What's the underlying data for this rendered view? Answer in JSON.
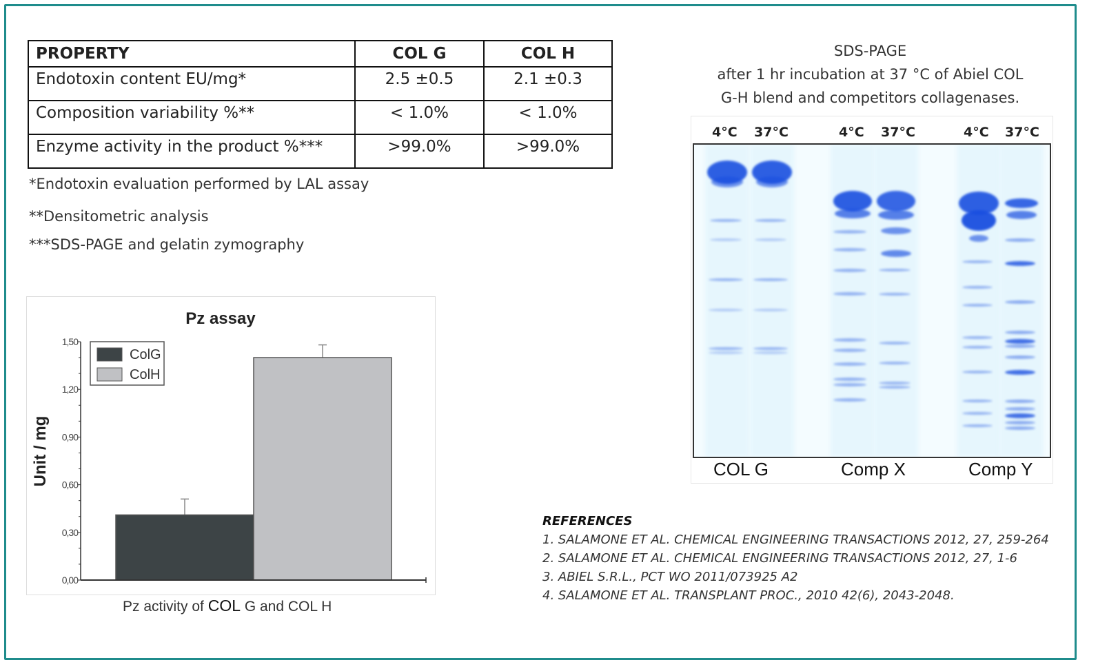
{
  "table": {
    "headers": [
      "PROPERTY",
      "COL G",
      "COL H"
    ],
    "rows": [
      [
        "Endotoxin content EU/mg*",
        "2.5 ±0.5",
        "2.1 ±0.3"
      ],
      [
        "Composition variability %**",
        "< 1.0%",
        "< 1.0%"
      ],
      [
        "Enzyme activity in the product %***",
        ">99.0%",
        ">99.0%"
      ]
    ]
  },
  "notes": [
    "*Endotoxin evaluation performed by LAL assay",
    "**Densitometric analysis",
    "***SDS-PAGE and gelatin zymography"
  ],
  "chart_data": {
    "type": "bar",
    "title": "Pz assay",
    "ylabel": "Unit / mg",
    "xlabel": "",
    "categories": [
      "ColG",
      "ColH"
    ],
    "values": [
      0.41,
      1.4
    ],
    "error": [
      0.1,
      0.08
    ],
    "colors": [
      "#3d4446",
      "#c0c1c4"
    ],
    "ylim": [
      0,
      1.5
    ],
    "yticks": [
      "0,00",
      "0,30",
      "0,60",
      "0,90",
      "1,20",
      "1,50"
    ],
    "legend": {
      "placement": "top-left",
      "entries": [
        "ColG",
        "ColH"
      ]
    },
    "grid": false
  },
  "chart_caption": {
    "pre": "Pz activity of ",
    "bold": "COL",
    "post": " G and COL H"
  },
  "gel": {
    "title_lines": [
      "SDS-PAGE",
      "after 1 hr incubation at 37 °C of Abiel COL",
      "G-H blend and competitors collagenases."
    ],
    "temps": [
      "4°C",
      "37°C",
      "4°C",
      "37°C",
      "4°C",
      "37°C"
    ],
    "groups": [
      "COL G",
      "Comp X",
      "Comp Y"
    ],
    "stain_color": "#1a4fe0"
  },
  "references": {
    "heading": "REFERENCES",
    "items": [
      "1.  SALAMONE  ET AL. CHEMICAL ENGINEERING TRANSACTIONS 2012, 27, 259-264",
      "2. SALAMONE  ET AL. CHEMICAL ENGINEERING TRANSACTIONS 2012, 27, 1-6",
      "3. ABIEL S.R.L.,  PCT WO 2011/073925 A2",
      "4. SALAMONE ET AL. TRANSPLANT PROC., 2010 42(6), 2043-2048."
    ]
  },
  "accent_color": "#1f8c8c"
}
